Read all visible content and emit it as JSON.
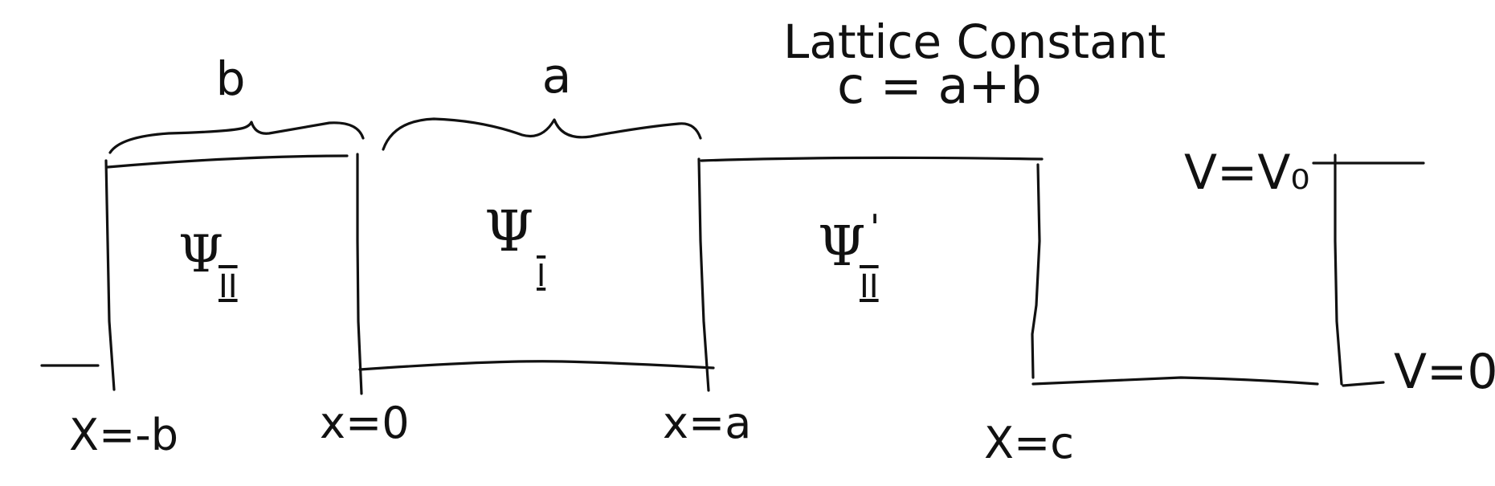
{
  "title": {
    "line1": "Lattice Constant",
    "line2": "c = a+b"
  },
  "braces": {
    "b_label": "b",
    "a_label": "a"
  },
  "regions": {
    "psi_symbol": "Ψ",
    "psi_prime_mark": "'",
    "region_II_sub": "II",
    "region_I_sub": "I",
    "region_II_prime_sub": "II"
  },
  "potentials": {
    "high": "V=V₀",
    "low": "V=0"
  },
  "positions": {
    "x_minus_b": "X=-b",
    "x_zero": "x=0",
    "x_a": "x=a",
    "x_c": "X=c"
  }
}
